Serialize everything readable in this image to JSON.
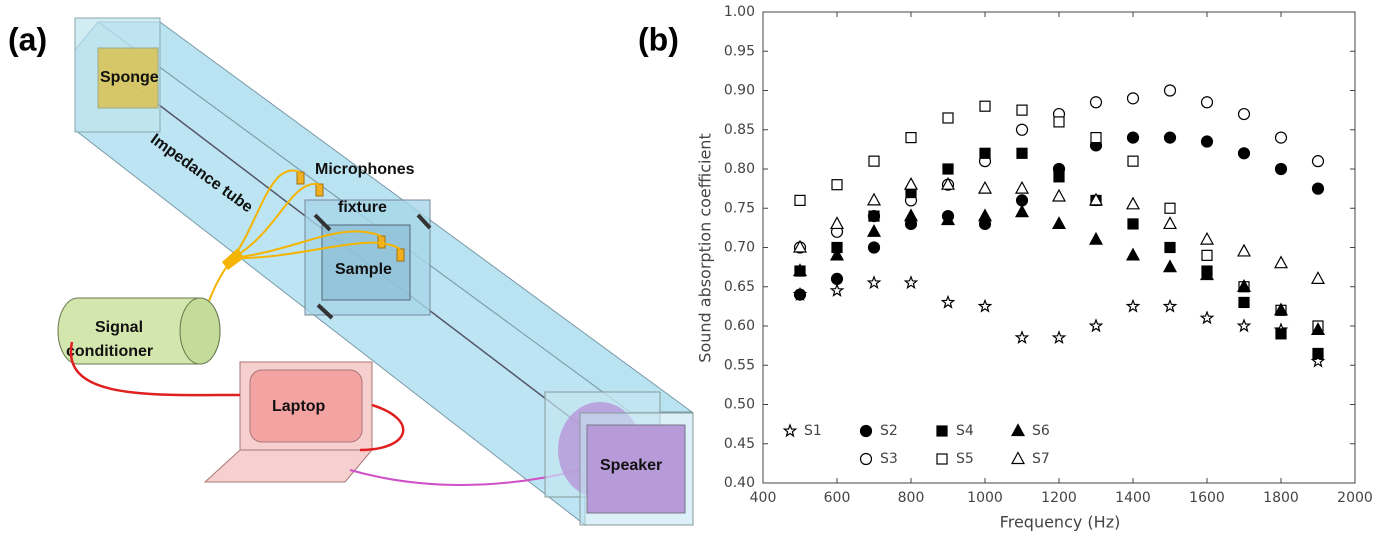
{
  "diagram": {
    "panel_label": "(a)",
    "labels": {
      "sponge": "Sponge",
      "tube": "Impedance tube",
      "microphones": "Microphones",
      "fixture": "fixture",
      "sample": "Sample",
      "conditioner": [
        "Signal",
        "conditioner"
      ],
      "laptop": "Laptop",
      "speaker": "Speaker"
    }
  },
  "chart_data": {
    "type": "scatter",
    "panel_label": "(b)",
    "x_label": "Frequency (Hz)",
    "y_label": "Sound absorption coefficient",
    "x": [
      500,
      600,
      700,
      800,
      900,
      1000,
      1100,
      1200,
      1300,
      1400,
      1500,
      1600,
      1700,
      1800,
      1900
    ],
    "series": [
      {
        "name": "S1",
        "color": "#000000",
        "marker": "star",
        "filled": false,
        "values": [
          0.64,
          0.645,
          0.655,
          0.655,
          0.63,
          0.625,
          0.585,
          0.585,
          0.6,
          0.625,
          0.625,
          0.61,
          0.6,
          0.595,
          0.555
        ]
      },
      {
        "name": "S2",
        "color": "#000000",
        "marker": "circle",
        "filled": true,
        "values": [
          0.64,
          0.66,
          0.7,
          0.73,
          0.74,
          0.73,
          0.76,
          0.8,
          0.83,
          0.84,
          0.84,
          0.835,
          0.82,
          0.8,
          0.775
        ]
      },
      {
        "name": "S3",
        "color": "#000000",
        "marker": "circle",
        "filled": false,
        "values": [
          0.7,
          0.72,
          0.74,
          0.76,
          0.78,
          0.81,
          0.85,
          0.87,
          0.885,
          0.89,
          0.9,
          0.885,
          0.87,
          0.84,
          0.81
        ]
      },
      {
        "name": "S4",
        "color": "#000000",
        "marker": "square",
        "filled": true,
        "values": [
          0.67,
          0.7,
          0.74,
          0.77,
          0.8,
          0.82,
          0.82,
          0.79,
          0.76,
          0.73,
          0.7,
          0.67,
          0.63,
          0.59,
          0.565
        ]
      },
      {
        "name": "S5",
        "color": "#000000",
        "marker": "square",
        "filled": false,
        "values": [
          0.76,
          0.78,
          0.81,
          0.84,
          0.865,
          0.88,
          0.875,
          0.86,
          0.84,
          0.81,
          0.75,
          0.69,
          0.65,
          0.62,
          0.6
        ]
      },
      {
        "name": "S6",
        "color": "#000000",
        "marker": "triangle",
        "filled": true,
        "values": [
          0.67,
          0.69,
          0.72,
          0.74,
          0.735,
          0.74,
          0.745,
          0.73,
          0.71,
          0.69,
          0.675,
          0.665,
          0.65,
          0.62,
          0.595
        ]
      },
      {
        "name": "S7",
        "color": "#000000",
        "marker": "triangle",
        "filled": false,
        "values": [
          0.7,
          0.73,
          0.76,
          0.78,
          0.78,
          0.775,
          0.775,
          0.765,
          0.76,
          0.755,
          0.73,
          0.71,
          0.695,
          0.68,
          0.66
        ]
      }
    ],
    "xlim": [
      400,
      2000
    ],
    "xticks": [
      400,
      600,
      800,
      1000,
      1200,
      1400,
      1600,
      1800,
      2000
    ],
    "ylim": [
      0.4,
      1.0
    ],
    "yticks": [
      {
        "value": 0.4,
        "label": "0.40"
      },
      {
        "value": 0.45,
        "label": "0.45"
      },
      {
        "value": 0.5,
        "label": "0.50"
      },
      {
        "value": 0.55,
        "label": "0.55"
      },
      {
        "value": 0.6,
        "label": "0.60"
      },
      {
        "value": 0.65,
        "label": "0.65"
      },
      {
        "value": 0.7,
        "label": "0.70"
      },
      {
        "value": 0.75,
        "label": "0.75"
      },
      {
        "value": 0.8,
        "label": "0.80"
      },
      {
        "value": 0.85,
        "label": "0.85"
      },
      {
        "value": 0.9,
        "label": "0.90"
      },
      {
        "value": 0.95,
        "label": "0.95"
      },
      {
        "value": 1.0,
        "label": "1.00"
      }
    ],
    "legend": "lower left",
    "grid": false
  }
}
